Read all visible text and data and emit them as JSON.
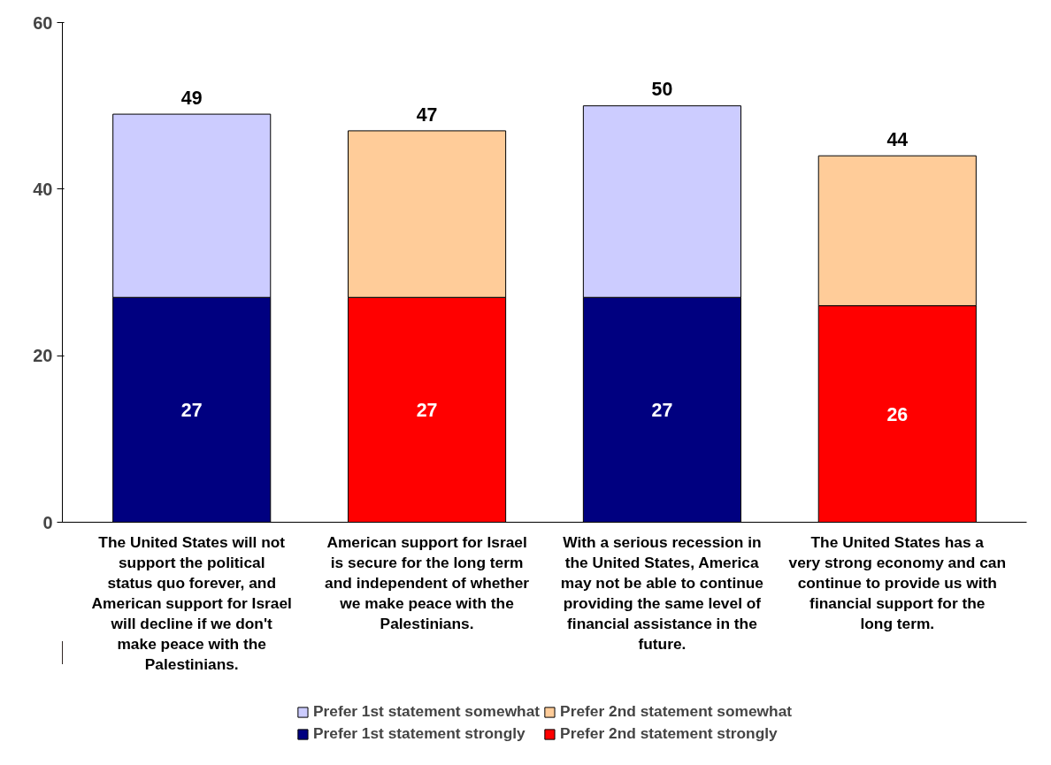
{
  "chart_data": {
    "type": "bar",
    "stacked": true,
    "categories": [
      "The United States will not support the political status quo forever, and American support for Israel will decline if we don't make peace with the Palestinians.",
      "American support for Israel is secure for the long term and independent of whether we make peace with the Palestinians.",
      "With a serious recession in the United States, America may not be able to continue providing the same level of financial assistance in the future.",
      "The United States has a very strong economy and can continue to provide us with financial support for the long term."
    ],
    "series": [
      {
        "name": "Prefer 1st statement strongly",
        "color": "#000080",
        "values": [
          27,
          null,
          27,
          null
        ],
        "value_labels": [
          "27",
          null,
          "27",
          null
        ]
      },
      {
        "name": "Prefer 2nd statement strongly",
        "color": "#ff0000",
        "values": [
          null,
          27,
          null,
          26
        ],
        "value_labels": [
          null,
          "27",
          null,
          "26"
        ]
      },
      {
        "name": "Prefer 1st statement somewhat",
        "color": "#ccccff",
        "values": [
          22,
          null,
          23,
          null
        ]
      },
      {
        "name": "Prefer 2nd statement somewhat",
        "color": "#ffcc99",
        "values": [
          null,
          20,
          null,
          18
        ]
      }
    ],
    "totals": [
      "49",
      "47",
      "50",
      "44"
    ],
    "ylim": [
      0,
      60
    ],
    "yticks": [
      0,
      20,
      40,
      60
    ],
    "grid": false,
    "legend": "bottom"
  }
}
